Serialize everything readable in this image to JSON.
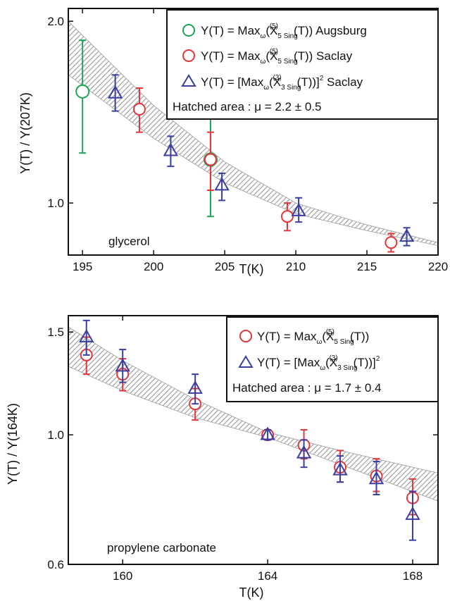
{
  "chart_data": [
    {
      "type": "scatter",
      "xlabel": "T(K)",
      "ylabel": "Y(T) / Y(207K)",
      "xlim": [
        194,
        220
      ],
      "ylim": [
        0.82,
        2.1
      ],
      "y_scale": "log",
      "xticks": [
        "195",
        "200",
        "205",
        "210",
        "215",
        "220"
      ],
      "yticks": [
        "1.0",
        "2.0"
      ],
      "annotation": "glycerol",
      "legend_position": "top-right",
      "hatched_band_note": "Hatched area : μ = 2.2 ± 0.5",
      "series": [
        {
          "name": "Y(T) = Max_ω(X_5 Sing^(5)(T)) Augsburg",
          "marker": "circle",
          "color": "#1fa35a",
          "points": [
            {
              "x": 195.0,
              "y": 1.53,
              "err_low": 1.21,
              "err_high": 1.86
            },
            {
              "x": 204.0,
              "y": 1.18,
              "err_low": 0.95,
              "err_high": 1.41
            }
          ]
        },
        {
          "name": "Y(T) = Max_ω(X_5 Sing^(5)(T)) Saclay",
          "marker": "circle",
          "color": "#e0383a",
          "points": [
            {
              "x": 199.0,
              "y": 1.43,
              "err_low": 1.31,
              "err_high": 1.55
            },
            {
              "x": 204.0,
              "y": 1.18,
              "err_low": 1.05,
              "err_high": 1.31
            },
            {
              "x": 209.4,
              "y": 0.95,
              "err_low": 0.9,
              "err_high": 1.0
            },
            {
              "x": 216.7,
              "y": 0.86,
              "err_low": 0.83,
              "err_high": 0.89
            }
          ]
        },
        {
          "name": "Y(T) = [Max_ω(X_3 Sing^(3)(T))]^2 Saclay",
          "marker": "triangle",
          "color": "#3a3fa0",
          "points": [
            {
              "x": 197.3,
              "y": 1.52,
              "err_low": 1.42,
              "err_high": 1.63
            },
            {
              "x": 201.2,
              "y": 1.22,
              "err_low": 1.15,
              "err_high": 1.29
            },
            {
              "x": 204.8,
              "y": 1.07,
              "err_low": 1.01,
              "err_high": 1.12
            },
            {
              "x": 210.2,
              "y": 0.97,
              "err_low": 0.93,
              "err_high": 1.02
            },
            {
              "x": 217.8,
              "y": 0.88,
              "err_low": 0.85,
              "err_high": 0.91
            }
          ]
        }
      ],
      "band": {
        "x": [
          194,
          200,
          205,
          210,
          215,
          220
        ],
        "lower": [
          1.63,
          1.28,
          1.08,
          0.96,
          0.9,
          0.85
        ],
        "upper": [
          2.0,
          1.45,
          1.17,
          1.0,
          0.92,
          0.86
        ]
      }
    },
    {
      "type": "scatter",
      "xlabel": "T(K)",
      "ylabel": "Y(T) / Y(164K)",
      "xlim": [
        158.5,
        168.7
      ],
      "ylim": [
        0.6,
        1.6
      ],
      "y_scale": "log",
      "xticks": [
        "160",
        "164",
        "168"
      ],
      "yticks": [
        "0.6",
        "1.0",
        "1.5"
      ],
      "annotation": "propylene carbonate",
      "legend_position": "top-right",
      "hatched_band_note": "Hatched area : μ = 1.7 ± 0.4",
      "series": [
        {
          "name": "Y(T) = Max_ω(X_5 Sing^(5)(T))",
          "marker": "circle",
          "color": "#e0383a",
          "points": [
            {
              "x": 159.0,
              "y": 1.37,
              "err_low": 1.27,
              "err_high": 1.47
            },
            {
              "x": 160.0,
              "y": 1.27,
              "err_low": 1.19,
              "err_high": 1.35
            },
            {
              "x": 162.0,
              "y": 1.13,
              "err_low": 1.06,
              "err_high": 1.2
            },
            {
              "x": 164.0,
              "y": 1.0,
              "err_low": 0.98,
              "err_high": 1.02
            },
            {
              "x": 165.0,
              "y": 0.96,
              "err_low": 0.91,
              "err_high": 1.02
            },
            {
              "x": 166.0,
              "y": 0.88,
              "err_low": 0.83,
              "err_high": 0.94
            },
            {
              "x": 167.0,
              "y": 0.85,
              "err_low": 0.8,
              "err_high": 0.91
            },
            {
              "x": 168.0,
              "y": 0.78,
              "err_low": 0.73,
              "err_high": 0.84
            }
          ]
        },
        {
          "name": "Y(T) = [Max_ω(X_3 Sing^(3)(T))]^2",
          "marker": "triangle",
          "color": "#3a3fa0",
          "points": [
            {
              "x": 159.0,
              "y": 1.47,
              "err_low": 1.37,
              "err_high": 1.57
            },
            {
              "x": 160.0,
              "y": 1.31,
              "err_low": 1.23,
              "err_high": 1.4
            },
            {
              "x": 162.0,
              "y": 1.2,
              "err_low": 1.13,
              "err_high": 1.27
            },
            {
              "x": 164.0,
              "y": 1.0,
              "err_low": 0.98,
              "err_high": 1.02
            },
            {
              "x": 165.0,
              "y": 0.93,
              "err_low": 0.88,
              "err_high": 0.98
            },
            {
              "x": 166.0,
              "y": 0.87,
              "err_low": 0.83,
              "err_high": 0.92
            },
            {
              "x": 167.0,
              "y": 0.84,
              "err_low": 0.79,
              "err_high": 0.9
            },
            {
              "x": 168.0,
              "y": 0.73,
              "err_low": 0.66,
              "err_high": 0.8
            }
          ]
        }
      ],
      "band": {
        "x": [
          158.5,
          160,
          162,
          164,
          166,
          168.7
        ],
        "lower": [
          1.31,
          1.19,
          1.07,
          0.99,
          0.89,
          0.77
        ],
        "upper": [
          1.53,
          1.34,
          1.15,
          1.01,
          0.94,
          0.86
        ]
      }
    }
  ]
}
